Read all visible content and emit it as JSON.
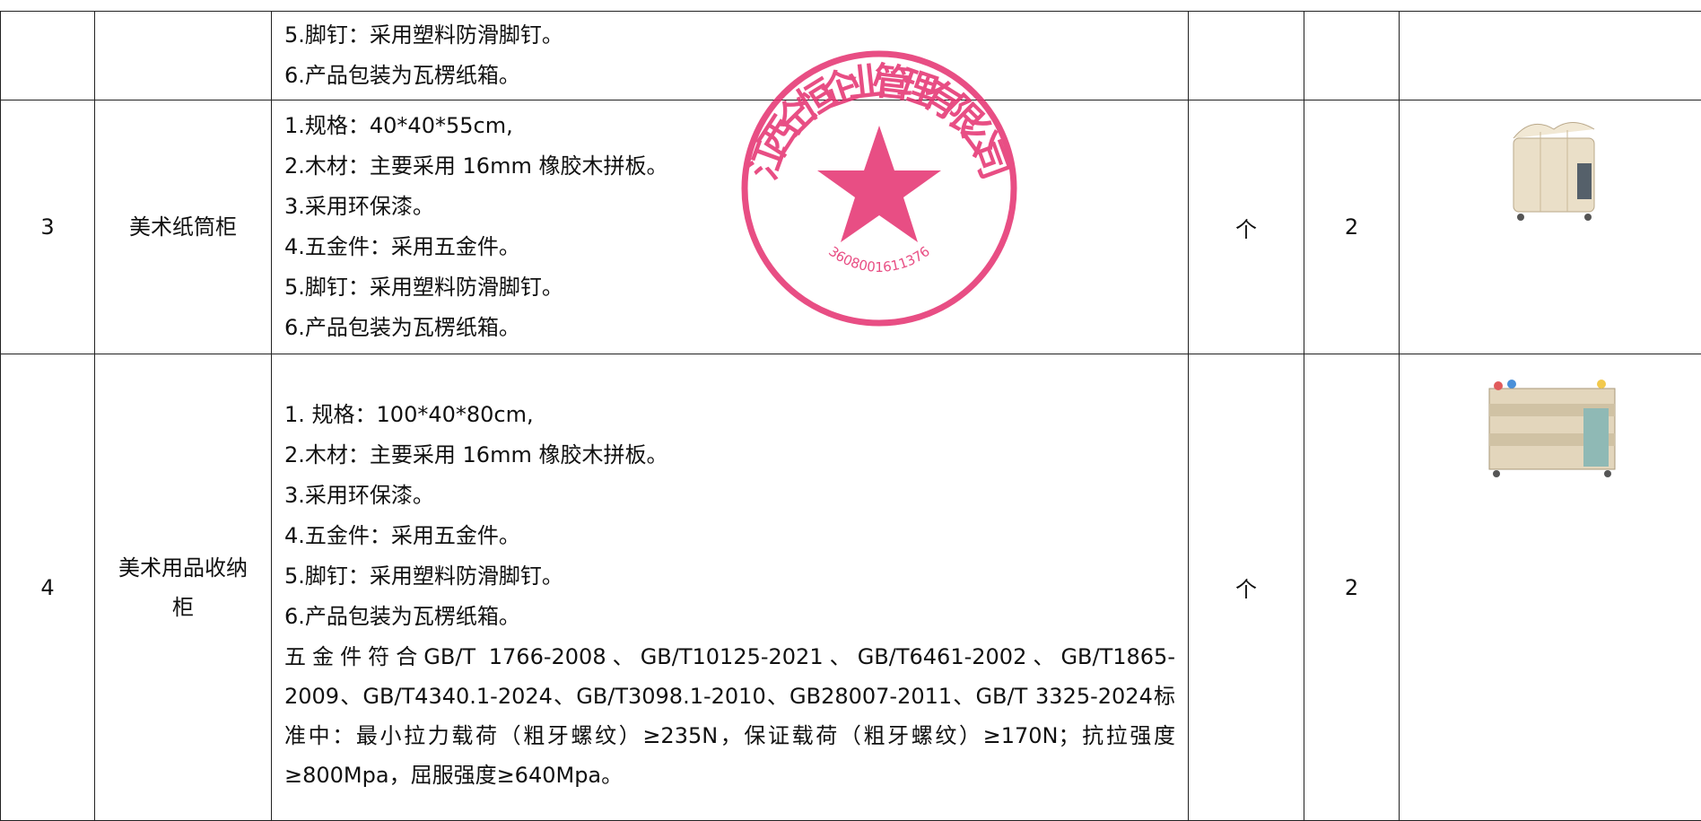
{
  "table": {
    "rows": [
      {
        "no": null,
        "name": null,
        "desc": [
          "5.脚钉：采用塑料防滑脚钉。",
          "6.产品包装为瓦楞纸箱。"
        ],
        "unit": null,
        "qty": null
      },
      {
        "no": "3",
        "name": "美术纸筒柜",
        "desc": [
          "1.规格：40*40*55cm,",
          "2.木材：主要采用 16mm 橡胶木拼板。",
          "3.采用环保漆。",
          "4.五金件：采用五金件。",
          "5.脚钉：采用塑料防滑脚钉。",
          "6.产品包装为瓦楞纸箱。"
        ],
        "unit": "个",
        "qty": "2"
      },
      {
        "no": "4",
        "name": "美术用品收纳柜",
        "desc": [
          "1. 规格：100*40*80cm,",
          "2.木材：主要采用 16mm 橡胶木拼板。",
          "3.采用环保漆。",
          "4.五金件：采用五金件。",
          "5.脚钉：采用塑料防滑脚钉。",
          "6.产品包装为瓦楞纸箱。"
        ],
        "note": "五金件符合GB/T 1766-2008、GB/T10125-2021、GB/T6461-2002、GB/T1865-2009、GB/T4340.1-2024、GB/T3098.1-2010、GB28007-2011、GB/T 3325-2024标准中：最小拉力载荷（粗牙螺纹）≥235N，保证载荷（粗牙螺纹）≥170N；抗拉强度≥800Mpa，屈服强度≥640Mpa。",
        "unit": "个",
        "qty": "2"
      }
    ]
  },
  "stamp": {
    "name": "江西仝恒企业管理有限公司",
    "code": "3608001611376"
  }
}
